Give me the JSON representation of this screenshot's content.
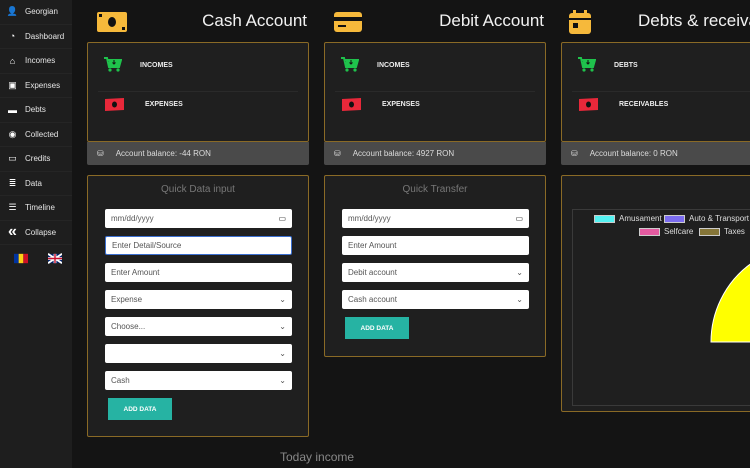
{
  "sidebar": {
    "items": [
      {
        "label": "Georgian",
        "icon": "user-icon"
      },
      {
        "label": "Dashboard",
        "icon": "gauge-icon"
      },
      {
        "label": "Incomes",
        "icon": "bank-icon"
      },
      {
        "label": "Expenses",
        "icon": "money-icon"
      },
      {
        "label": "Debts",
        "icon": "card-icon"
      },
      {
        "label": "Collected",
        "icon": "coins-icon"
      },
      {
        "label": "Credits",
        "icon": "credit-icon"
      },
      {
        "label": "Data",
        "icon": "database-icon"
      },
      {
        "label": "Timeline",
        "icon": "list-icon"
      },
      {
        "label": "Collapse",
        "icon": "double-chevron-left-icon"
      }
    ],
    "languages": [
      "Romanian",
      "English"
    ]
  },
  "cash": {
    "title": "Cash Account",
    "row1": "INCOMES",
    "row2": "EXPENSES",
    "balance": "Account balance: -44 RON"
  },
  "debit": {
    "title": "Debit Account",
    "row1": "INCOMES",
    "row2": "EXPENSES",
    "balance": "Account balance: 4927 RON"
  },
  "debts": {
    "title": "Debts & receivab",
    "row1": "DEBTS",
    "row2": "RECEIVABLES",
    "balance": "Account balance: 0 RON"
  },
  "quick_input": {
    "title": "Quick Data input",
    "date_placeholder": "mm/dd/yyyy",
    "detail_placeholder": "Enter Detail/Source",
    "amount_placeholder": "Enter Amount",
    "type": "Expense",
    "category": "Choose...",
    "subcategory": "",
    "account": "Cash",
    "button": "ADD DATA"
  },
  "quick_transfer": {
    "title": "Quick Transfer",
    "date_placeholder": "mm/dd/yyyy",
    "amount_placeholder": "Enter Amount",
    "from": "Debit account",
    "to": "Cash account",
    "button": "ADD DATA"
  },
  "today_income": "Today income",
  "chart_data": {
    "type": "pie",
    "legend": [
      {
        "label": "Amusament",
        "color": "#55f2f2"
      },
      {
        "label": "Auto & Transport",
        "color": "#7b6cf0"
      },
      {
        "label": "Selfcare",
        "color": "#e35aa0"
      },
      {
        "label": "Taxes",
        "color": "#857538"
      }
    ],
    "legend_placement": "top",
    "visible_slice_colors": [
      "#ffff00",
      "#f8b318",
      "#e23a3a",
      "#e35aa0",
      "#857538"
    ]
  },
  "colors": {
    "accent": "#26b3a3",
    "border": "#8a6a26",
    "income": "#1fc24c",
    "expense": "#e8283a",
    "header_icon": "#f6b93b"
  }
}
